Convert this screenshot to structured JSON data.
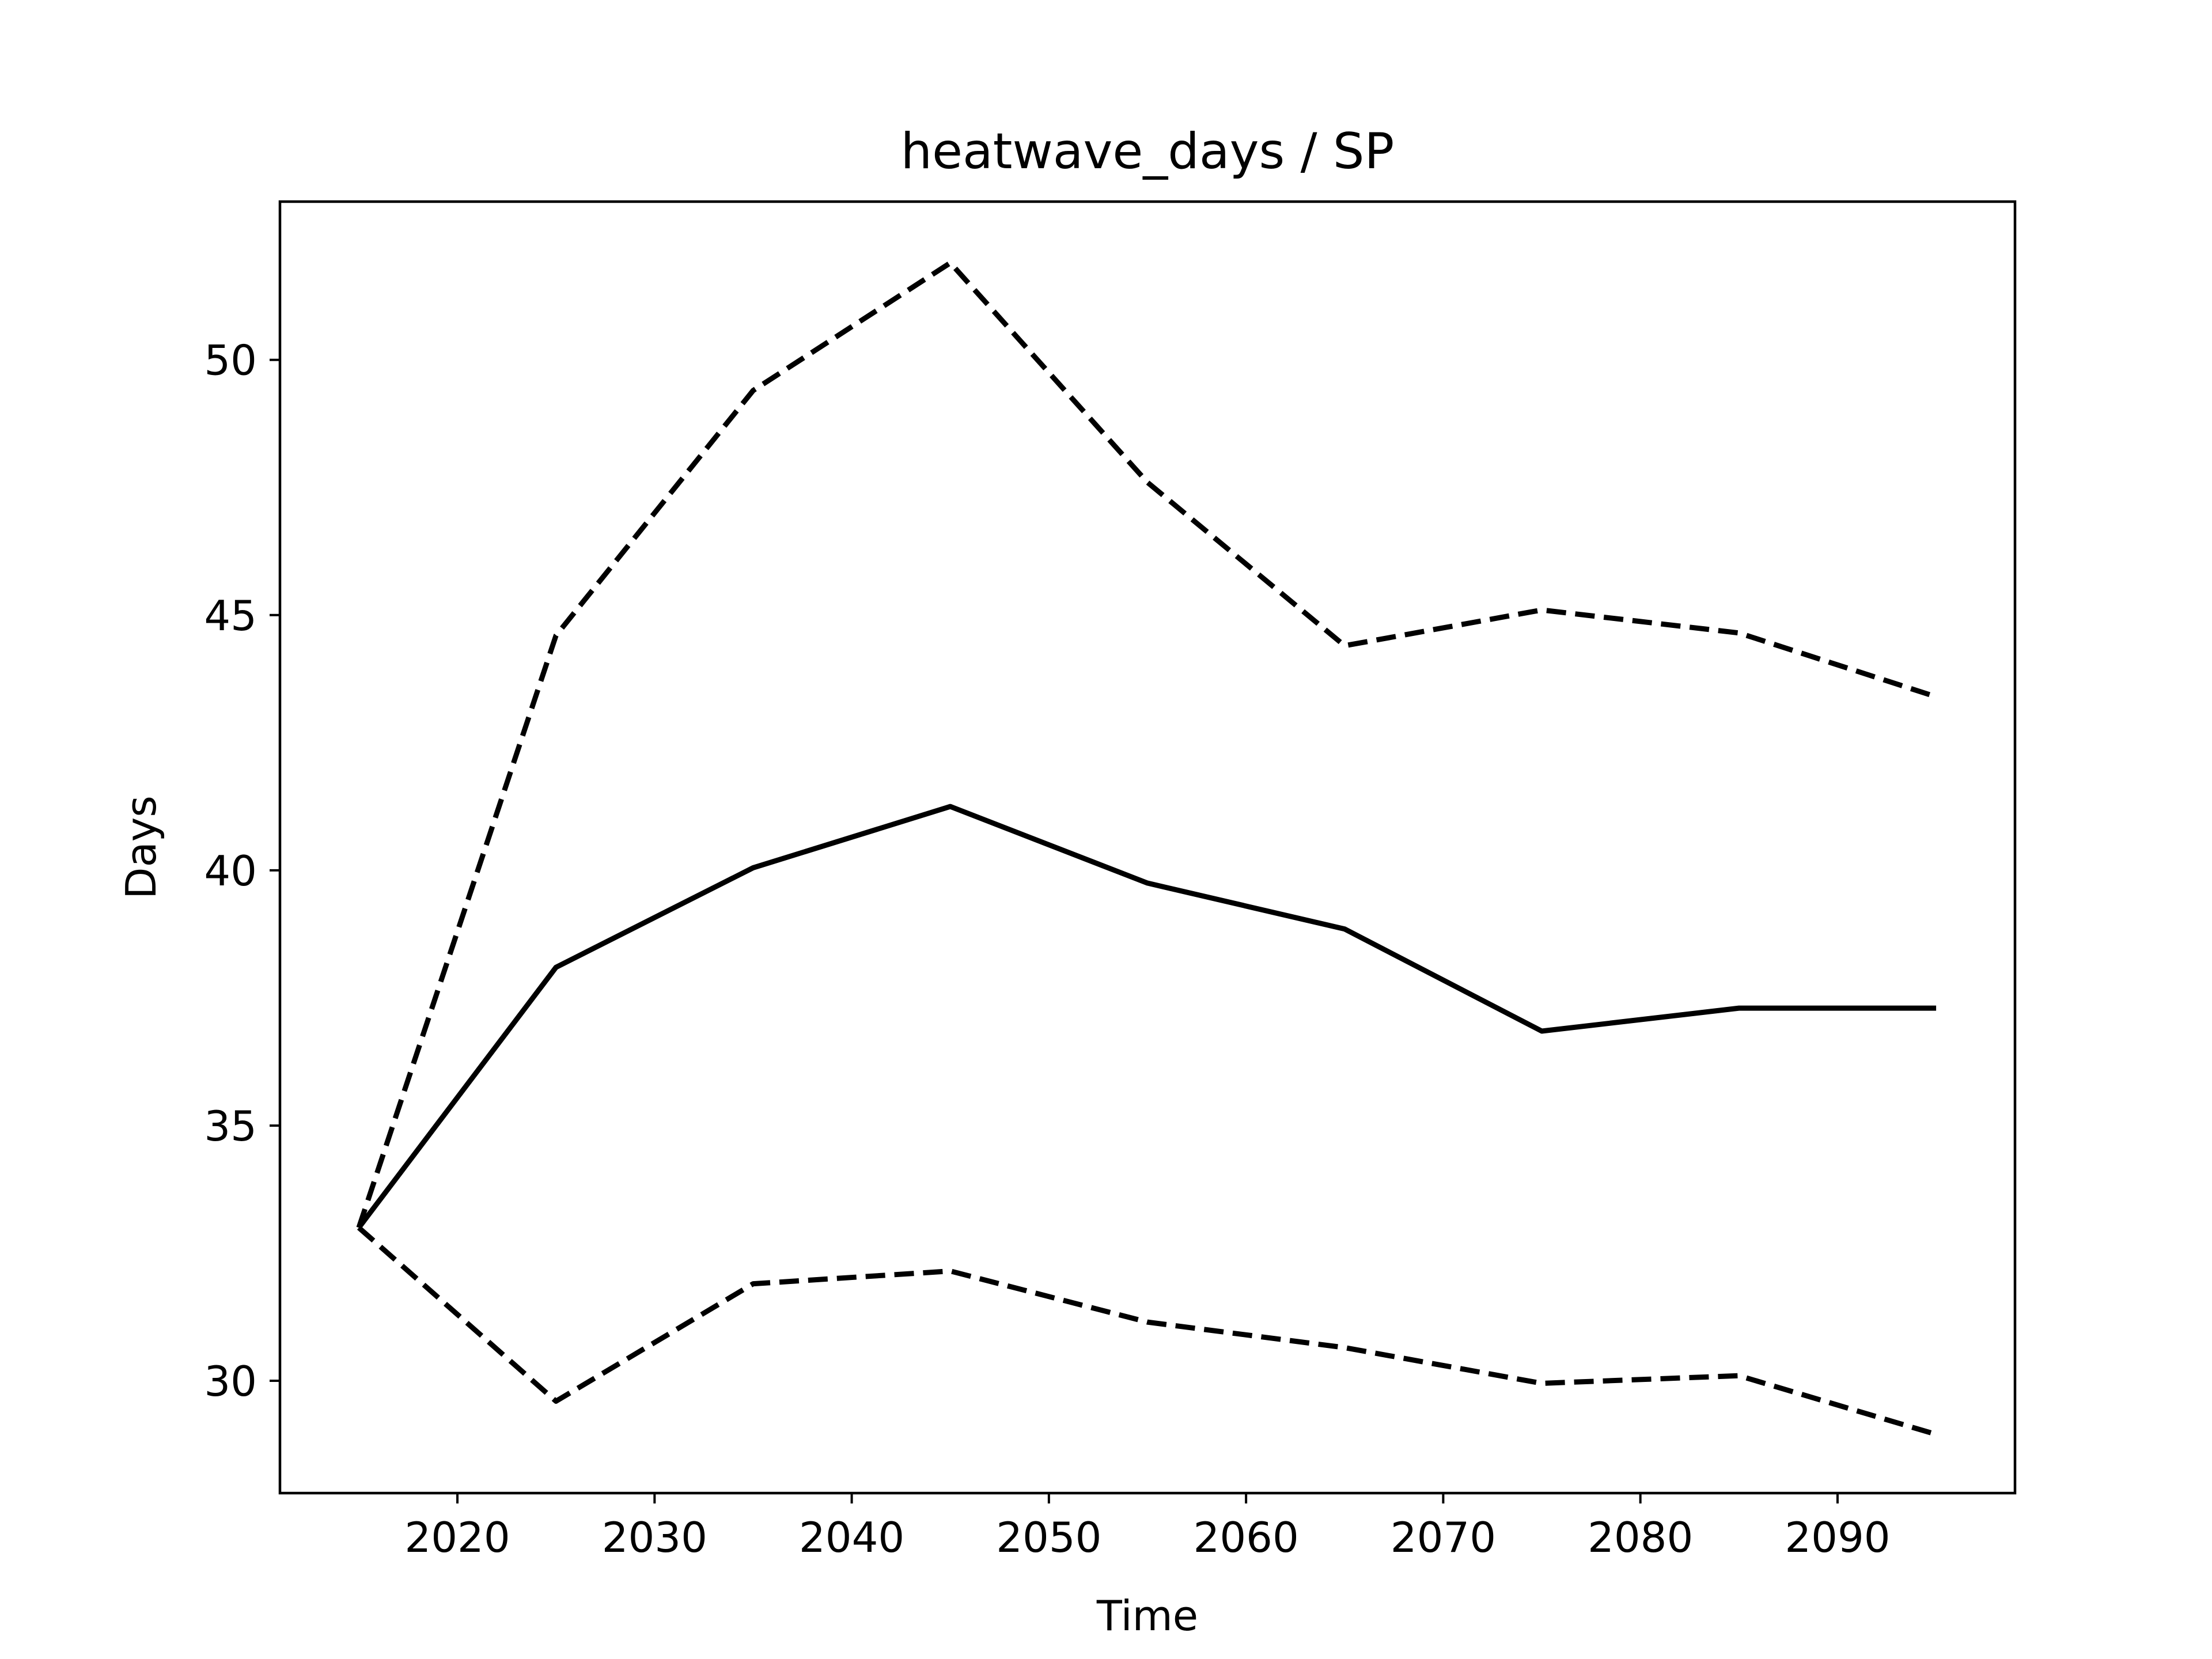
{
  "chart_data": {
    "type": "line",
    "title": "heatwave_days / SP",
    "xlabel": "Time",
    "ylabel": "Days",
    "xlim": [
      2011,
      2099
    ],
    "ylim": [
      27.8,
      53.1
    ],
    "xticks": [
      2020,
      2030,
      2040,
      2050,
      2060,
      2070,
      2080,
      2090
    ],
    "yticks": [
      30,
      35,
      40,
      45,
      50
    ],
    "grid": false,
    "x": [
      2015,
      2025,
      2035,
      2045,
      2055,
      2065,
      2075,
      2085,
      2095
    ],
    "series": [
      {
        "style": "solid",
        "color": "#000000",
        "values": [
          33.0,
          38.1,
          40.05,
          41.25,
          39.75,
          38.85,
          36.85,
          37.3,
          37.3
        ]
      },
      {
        "style": "dashed",
        "color": "#000000",
        "values": [
          33.0,
          44.6,
          49.4,
          51.9,
          47.6,
          44.4,
          45.1,
          44.65,
          43.4
        ]
      },
      {
        "style": "dashed",
        "color": "#000000",
        "values": [
          33.0,
          29.6,
          31.9,
          32.15,
          31.15,
          30.65,
          29.95,
          30.1,
          28.95
        ]
      }
    ]
  }
}
